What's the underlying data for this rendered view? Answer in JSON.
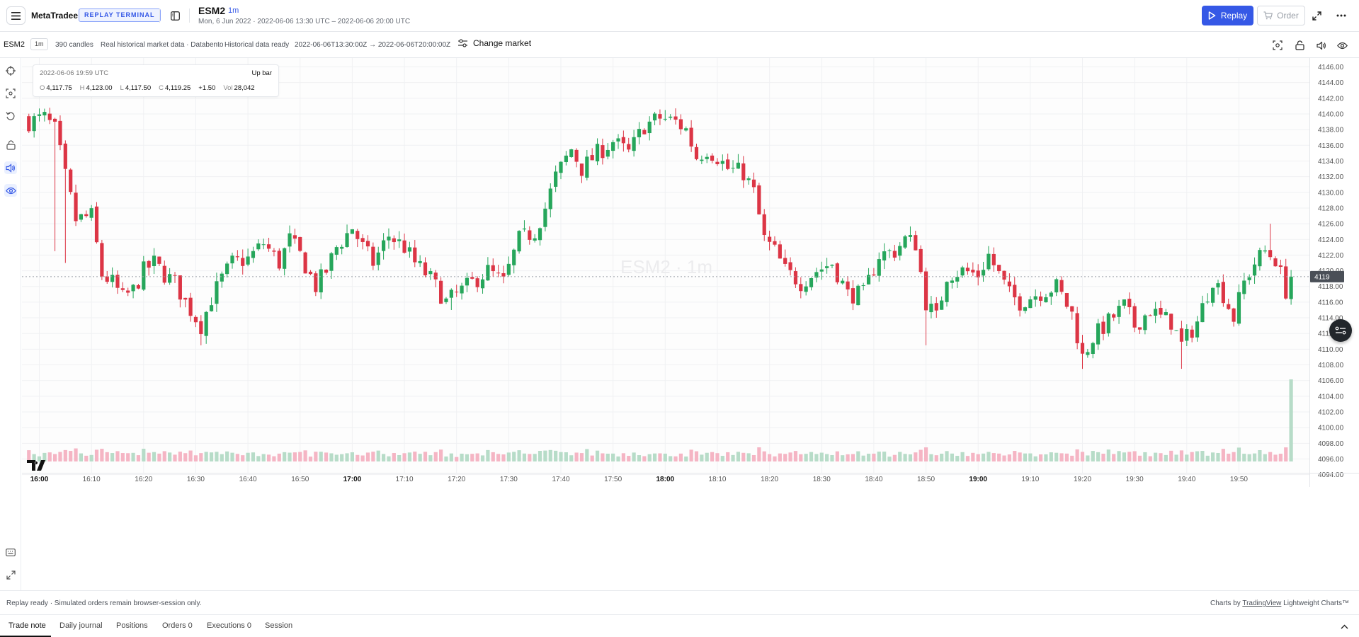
{
  "header": {
    "brand": "MetaTradee",
    "badge": "REPLAY TERMINAL",
    "symbol": "ESM2",
    "timeframe": "1m",
    "date_range": "Mon, 6 Jun 2022 · 2022-06-06 13:30 UTC – 2022-06-06 20:00 UTC",
    "replay_label": "Replay",
    "order_label": "Order"
  },
  "subbar": {
    "symbol": "ESM2",
    "timeframe": "1m",
    "candles": "390 candles",
    "source": "Real historical market data · Databento",
    "status": "Historical data ready",
    "range": "2022-06-06T13:30:00Z → 2022-06-06T20:00:00Z",
    "change_market": "Change market"
  },
  "legend": {
    "time": "2022-06-06 19:59 UTC",
    "direction": "Up bar",
    "o_label": "O",
    "o_value": "4,117.75",
    "h_label": "H",
    "h_value": "4,123.00",
    "l_label": "L",
    "l_value": "4,117.50",
    "c_label": "C",
    "c_value": "4,119.25",
    "change": "+1.50",
    "vol_label": "Vol",
    "vol_value": "28,042"
  },
  "colors": {
    "up": "#26a65b",
    "down": "#dc3545",
    "up_volume": "#b7dcc8",
    "down_volume": "#f5b5c4",
    "accent": "#3558e6"
  },
  "chart_data": {
    "type": "candlestick",
    "watermark": "ESM2 · 1m",
    "ylim": [
      4093,
      4147
    ],
    "y_ticks": [
      "4146.00",
      "4144.00",
      "4142.00",
      "4140.00",
      "4138.00",
      "4136.00",
      "4134.00",
      "4132.00",
      "4130.00",
      "4128.00",
      "4126.00",
      "4124.00",
      "4122.00",
      "4120.00",
      "4118.00",
      "4116.00",
      "4114.00",
      "4112.00",
      "4110.00",
      "4108.00",
      "4106.00",
      "4104.00",
      "4102.00",
      "4100.00",
      "4098.00",
      "4096.00",
      "4094.00"
    ],
    "x_ticks": [
      {
        "minute": 0,
        "label": "16:00",
        "bold": true
      },
      {
        "minute": 10,
        "label": "16:10",
        "bold": false
      },
      {
        "minute": 20,
        "label": "16:20",
        "bold": false
      },
      {
        "minute": 30,
        "label": "16:30",
        "bold": false
      },
      {
        "minute": 40,
        "label": "16:40",
        "bold": false
      },
      {
        "minute": 50,
        "label": "16:50",
        "bold": false
      },
      {
        "minute": 60,
        "label": "17:00",
        "bold": true
      },
      {
        "minute": 70,
        "label": "17:10",
        "bold": false
      },
      {
        "minute": 80,
        "label": "17:20",
        "bold": false
      },
      {
        "minute": 90,
        "label": "17:30",
        "bold": false
      },
      {
        "minute": 100,
        "label": "17:40",
        "bold": false
      },
      {
        "minute": 110,
        "label": "17:50",
        "bold": false
      },
      {
        "minute": 120,
        "label": "18:00",
        "bold": true
      },
      {
        "minute": 130,
        "label": "18:10",
        "bold": false
      },
      {
        "minute": 140,
        "label": "18:20",
        "bold": false
      },
      {
        "minute": 150,
        "label": "18:30",
        "bold": false
      },
      {
        "minute": 160,
        "label": "18:40",
        "bold": false
      },
      {
        "minute": 170,
        "label": "18:50",
        "bold": false
      },
      {
        "minute": 180,
        "label": "19:00",
        "bold": true
      },
      {
        "minute": 190,
        "label": "19:10",
        "bold": false
      },
      {
        "minute": 200,
        "label": "19:20",
        "bold": false
      },
      {
        "minute": 210,
        "label": "19:30",
        "bold": false
      },
      {
        "minute": 220,
        "label": "19:40",
        "bold": false
      },
      {
        "minute": 230,
        "label": "19:50",
        "bold": false
      }
    ],
    "last_price_label": "4119",
    "last_price": 4119.25,
    "close_path": [
      [
        -2,
        4139.0
      ],
      [
        1,
        4139.5
      ],
      [
        3,
        4138.0
      ],
      [
        5,
        4132.0
      ],
      [
        7,
        4126.5
      ],
      [
        10,
        4127.0
      ],
      [
        12,
        4119.5
      ],
      [
        14,
        4118.5
      ],
      [
        16,
        4116.5
      ],
      [
        18,
        4117.5
      ],
      [
        20,
        4120.0
      ],
      [
        22,
        4121.0
      ],
      [
        24,
        4119.5
      ],
      [
        26,
        4118.5
      ],
      [
        28,
        4116.0
      ],
      [
        31,
        4113.0
      ],
      [
        33,
        4116.5
      ],
      [
        35,
        4119.0
      ],
      [
        37,
        4121.0
      ],
      [
        40,
        4121.5
      ],
      [
        43,
        4123.5
      ],
      [
        46,
        4121.0
      ],
      [
        48,
        4124.0
      ],
      [
        50,
        4122.0
      ],
      [
        53,
        4118.0
      ],
      [
        55,
        4120.0
      ],
      [
        57,
        4123.0
      ],
      [
        60,
        4125.5
      ],
      [
        62,
        4123.0
      ],
      [
        64,
        4121.0
      ],
      [
        67,
        4124.5
      ],
      [
        70,
        4123.0
      ],
      [
        72,
        4121.0
      ],
      [
        75,
        4119.0
      ],
      [
        78,
        4116.0
      ],
      [
        82,
        4118.0
      ],
      [
        86,
        4120.0
      ],
      [
        89,
        4118.5
      ],
      [
        92,
        4124.0
      ],
      [
        95,
        4125.0
      ],
      [
        97,
        4128.0
      ],
      [
        99,
        4132.0
      ],
      [
        102,
        4135.5
      ],
      [
        104,
        4133.0
      ],
      [
        107,
        4135.0
      ],
      [
        110,
        4136.5
      ],
      [
        113,
        4135.0
      ],
      [
        116,
        4138.5
      ],
      [
        119,
        4139.5
      ],
      [
        122,
        4139.0
      ],
      [
        124,
        4138.0
      ],
      [
        126,
        4134.5
      ],
      [
        128,
        4135.5
      ],
      [
        130,
        4134.5
      ],
      [
        132,
        4133.0
      ],
      [
        135,
        4132.5
      ],
      [
        137,
        4130.0
      ],
      [
        139,
        4124.0
      ],
      [
        141,
        4122.5
      ],
      [
        143,
        4120.0
      ],
      [
        146,
        4118.5
      ],
      [
        149,
        4120.0
      ],
      [
        152,
        4121.0
      ],
      [
        155,
        4117.0
      ],
      [
        158,
        4117.0
      ],
      [
        161,
        4122.0
      ],
      [
        164,
        4122.5
      ],
      [
        166,
        4124.0
      ],
      [
        168,
        4123.5
      ],
      [
        170,
        4116.0
      ],
      [
        172,
        4114.0
      ],
      [
        174,
        4119.5
      ],
      [
        177,
        4120.0
      ],
      [
        180,
        4119.5
      ],
      [
        182,
        4122.0
      ],
      [
        184,
        4119.5
      ],
      [
        186,
        4117.0
      ],
      [
        188,
        4116.0
      ],
      [
        191,
        4117.0
      ],
      [
        195,
        4118.0
      ],
      [
        198,
        4114.5
      ],
      [
        200,
        4109.0
      ],
      [
        202,
        4111.5
      ],
      [
        205,
        4113.5
      ],
      [
        208,
        4115.5
      ],
      [
        210,
        4113.0
      ],
      [
        213,
        4115.0
      ],
      [
        215,
        4114.0
      ],
      [
        217,
        4113.5
      ],
      [
        219,
        4110.5
      ],
      [
        222,
        4113.5
      ],
      [
        225,
        4119.0
      ],
      [
        227,
        4117.0
      ],
      [
        229,
        4114.0
      ],
      [
        231,
        4118.5
      ],
      [
        233,
        4121.0
      ],
      [
        235,
        4122.5
      ],
      [
        237,
        4121.5
      ],
      [
        239,
        4117.5
      ],
      [
        240,
        4119.25
      ]
    ],
    "spikes": [
      {
        "minute": 3,
        "low": 4122.5
      },
      {
        "minute": 5,
        "low": 4121.0
      },
      {
        "minute": 31,
        "low": 4110.5
      },
      {
        "minute": 79,
        "low": 4115.0
      },
      {
        "minute": 170,
        "low": 4110.5
      },
      {
        "minute": 200,
        "low": 4107.5
      },
      {
        "minute": 219,
        "low": 4107.5
      },
      {
        "minute": 236,
        "high": 4126.0
      },
      {
        "minute": 120,
        "high": 4140.5
      }
    ],
    "volume_spike": {
      "minute": 240,
      "value": 28042
    }
  },
  "status": {
    "left": "Replay ready · Simulated orders remain browser-session only.",
    "right_prefix": "Charts by ",
    "right_link": "TradingView",
    "right_suffix": " Lightweight Charts™"
  },
  "tabs": [
    {
      "label": "Trade note"
    },
    {
      "label": "Daily journal"
    },
    {
      "label": "Positions"
    },
    {
      "label": "Orders 0"
    },
    {
      "label": "Executions 0"
    },
    {
      "label": "Session"
    }
  ]
}
